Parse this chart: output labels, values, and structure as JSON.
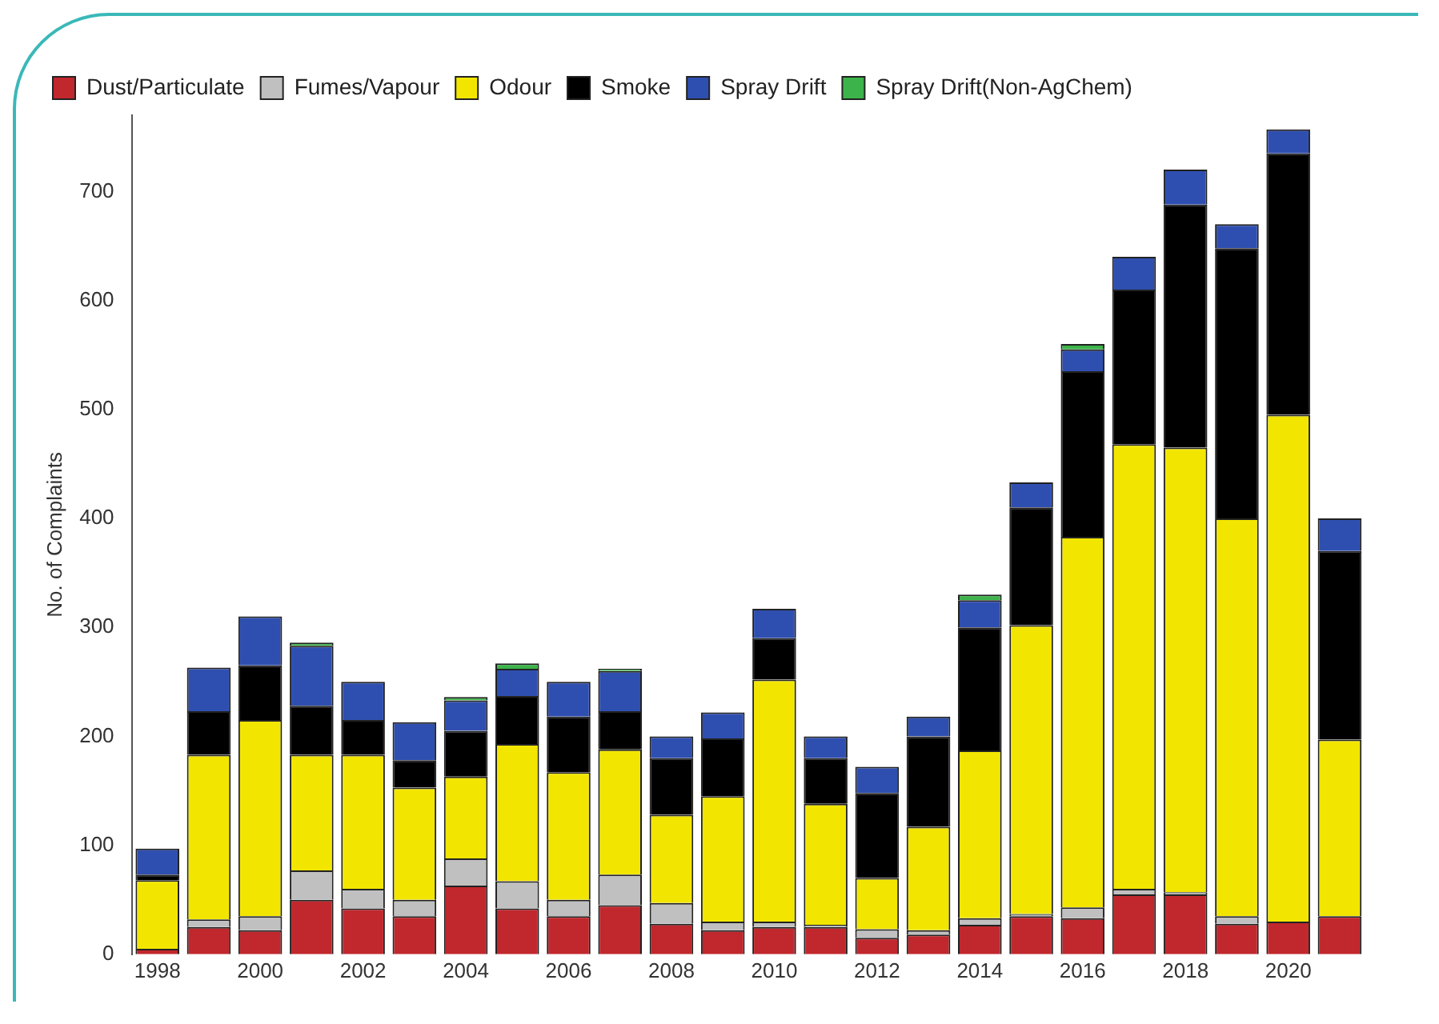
{
  "chart_data": {
    "type": "bar",
    "stacked": true,
    "ylabel": "No. of Complaints",
    "categories": [
      "1998",
      null,
      "2000",
      null,
      "2002",
      null,
      "2004",
      null,
      "2006",
      null,
      "2008",
      null,
      "2010",
      null,
      "2012",
      null,
      "2014",
      null,
      "2016",
      null,
      "2018",
      null,
      "2020",
      null
    ],
    "series": [
      {
        "name": "Dust/Particulate",
        "color": "#c0282d",
        "values": [
          5,
          25,
          22,
          50,
          42,
          35,
          63,
          42,
          35,
          45,
          28,
          22,
          25,
          25,
          15,
          18,
          27,
          35,
          33,
          55,
          55,
          28,
          30,
          35
        ]
      },
      {
        "name": "Fumes/Vapour",
        "color": "#c0c0c0",
        "values": [
          0,
          7,
          13,
          27,
          18,
          15,
          25,
          25,
          15,
          28,
          19,
          8,
          5,
          2,
          8,
          4,
          6,
          2,
          10,
          5,
          2,
          7,
          0,
          0
        ]
      },
      {
        "name": "Odour",
        "color": "#f2e600",
        "values": [
          63,
          151,
          180,
          106,
          123,
          103,
          75,
          126,
          117,
          115,
          81,
          115,
          222,
          111,
          47,
          95,
          154,
          265,
          340,
          408,
          408,
          365,
          465,
          162
        ]
      },
      {
        "name": "Smoke",
        "color": "#000000",
        "values": [
          5,
          40,
          50,
          45,
          32,
          25,
          42,
          44,
          51,
          35,
          52,
          53,
          38,
          42,
          78,
          83,
          113,
          108,
          152,
          142,
          223,
          248,
          240,
          173
        ]
      },
      {
        "name": "Spray Drift",
        "color": "#2f4fb0",
        "values": [
          24,
          40,
          45,
          55,
          35,
          35,
          28,
          25,
          32,
          37,
          20,
          24,
          27,
          20,
          24,
          18,
          25,
          23,
          20,
          30,
          32,
          22,
          22,
          30
        ]
      },
      {
        "name": "Spray Drift(Non-AgChem)",
        "color": "#3cb44b",
        "values": [
          0,
          0,
          0,
          3,
          0,
          0,
          3,
          5,
          0,
          2,
          0,
          0,
          0,
          0,
          0,
          0,
          5,
          0,
          5,
          0,
          0,
          0,
          0,
          0
        ]
      }
    ],
    "ylim": [
      0,
      770
    ],
    "yticks": [
      0,
      100,
      200,
      300,
      400,
      500,
      600,
      700
    ],
    "grid": false,
    "legend": "top left"
  }
}
